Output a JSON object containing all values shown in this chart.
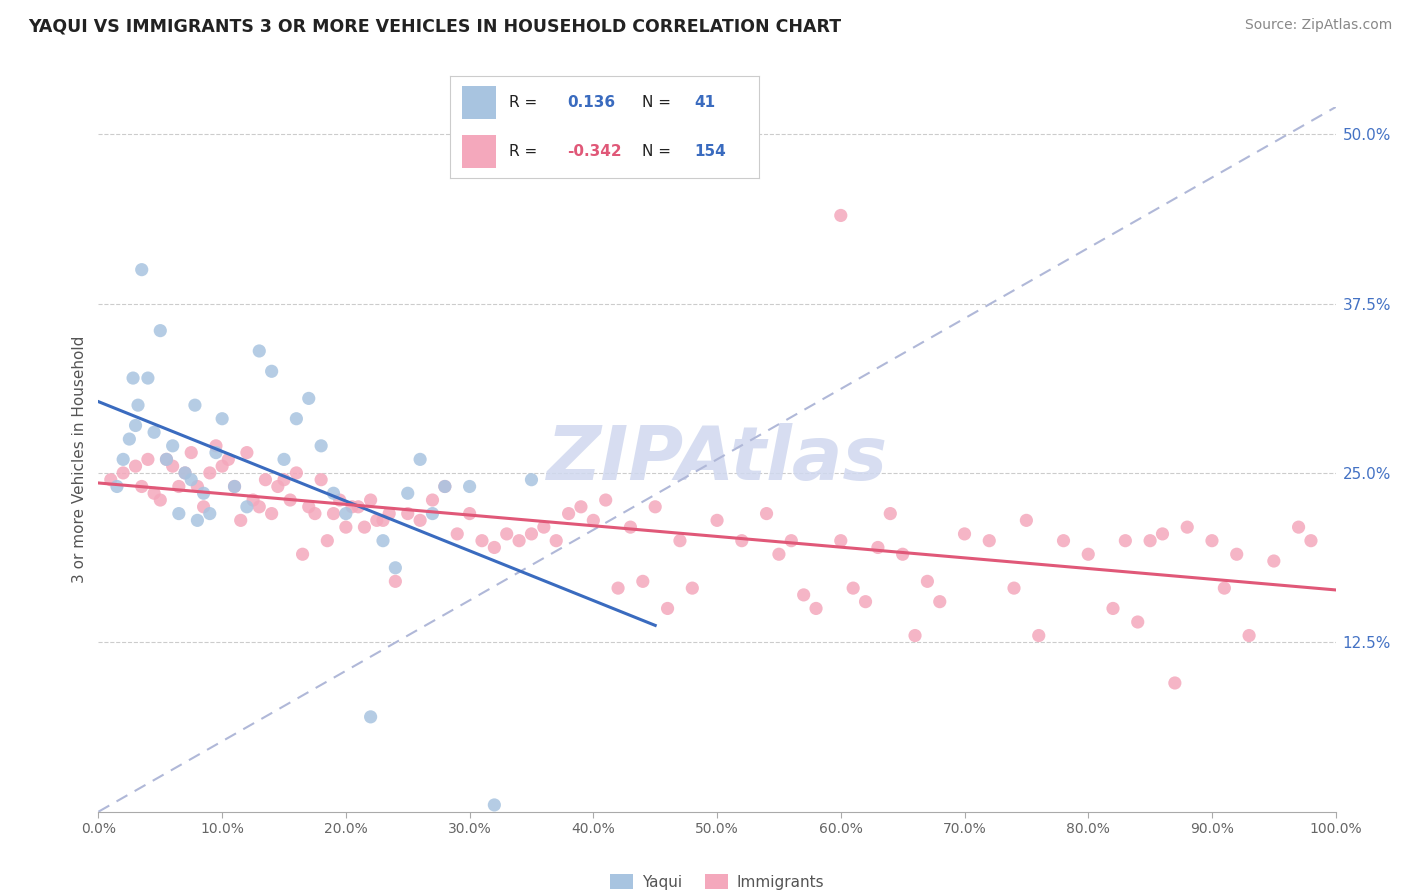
{
  "title": "YAQUI VS IMMIGRANTS 3 OR MORE VEHICLES IN HOUSEHOLD CORRELATION CHART",
  "source": "Source: ZipAtlas.com",
  "ylabel": "3 or more Vehicles in Household",
  "xlim": [
    0,
    100
  ],
  "ylim": [
    0,
    52
  ],
  "yticks": [
    12.5,
    25.0,
    37.5,
    50.0
  ],
  "xticks": [
    0,
    10,
    20,
    30,
    40,
    50,
    60,
    70,
    80,
    90,
    100
  ],
  "yaqui_R": 0.136,
  "yaqui_N": 41,
  "immigrants_R": -0.342,
  "immigrants_N": 154,
  "yaqui_color": "#a8c4e0",
  "immigrants_color": "#f4a8bc",
  "yaqui_line_color": "#3a6bbf",
  "immigrants_line_color": "#e05878",
  "dashed_line_color": "#b0b8d8",
  "background_color": "#ffffff",
  "grid_color": "#cccccc",
  "watermark_color": "#d0d8ef",
  "yaqui_x": [
    1.5,
    2.0,
    2.5,
    2.8,
    3.0,
    3.2,
    3.5,
    4.0,
    4.5,
    5.0,
    5.5,
    6.0,
    6.5,
    7.0,
    7.5,
    7.8,
    8.0,
    8.5,
    9.0,
    9.5,
    10.0,
    11.0,
    12.0,
    13.0,
    14.0,
    15.0,
    16.0,
    17.0,
    18.0,
    19.0,
    20.0,
    22.0,
    23.0,
    24.0,
    25.0,
    26.0,
    27.0,
    28.0,
    30.0,
    32.0,
    35.0
  ],
  "yaqui_y": [
    24.0,
    26.0,
    27.5,
    32.0,
    28.5,
    30.0,
    40.0,
    32.0,
    28.0,
    35.5,
    26.0,
    27.0,
    22.0,
    25.0,
    24.5,
    30.0,
    21.5,
    23.5,
    22.0,
    26.5,
    29.0,
    24.0,
    22.5,
    34.0,
    32.5,
    26.0,
    29.0,
    30.5,
    27.0,
    23.5,
    22.0,
    7.0,
    20.0,
    18.0,
    23.5,
    26.0,
    22.0,
    24.0,
    24.0,
    0.5,
    24.5
  ],
  "immigrants_x": [
    1.0,
    2.0,
    3.0,
    3.5,
    4.0,
    4.5,
    5.0,
    5.5,
    6.0,
    6.5,
    7.0,
    7.5,
    8.0,
    8.5,
    9.0,
    9.5,
    10.0,
    10.5,
    11.0,
    11.5,
    12.0,
    12.5,
    13.0,
    13.5,
    14.0,
    14.5,
    15.0,
    15.5,
    16.0,
    16.5,
    17.0,
    17.5,
    18.0,
    18.5,
    19.0,
    19.5,
    20.0,
    20.5,
    21.0,
    21.5,
    22.0,
    22.5,
    23.0,
    23.5,
    24.0,
    25.0,
    26.0,
    27.0,
    28.0,
    29.0,
    30.0,
    31.0,
    32.0,
    33.0,
    34.0,
    35.0,
    36.0,
    37.0,
    38.0,
    39.0,
    40.0,
    41.0,
    42.0,
    43.0,
    44.0,
    45.0,
    46.0,
    47.0,
    48.0,
    50.0,
    52.0,
    54.0,
    55.0,
    56.0,
    57.0,
    58.0,
    60.0,
    61.0,
    62.0,
    63.0,
    64.0,
    65.0,
    66.0,
    67.0,
    68.0,
    70.0,
    72.0,
    74.0,
    75.0,
    76.0,
    78.0,
    80.0,
    82.0,
    83.0,
    84.0,
    85.0,
    86.0,
    87.0,
    88.0,
    90.0,
    91.0,
    92.0,
    93.0,
    95.0,
    97.0,
    98.0,
    60.0
  ],
  "immigrants_y": [
    24.5,
    25.0,
    25.5,
    24.0,
    26.0,
    23.5,
    23.0,
    26.0,
    25.5,
    24.0,
    25.0,
    26.5,
    24.0,
    22.5,
    25.0,
    27.0,
    25.5,
    26.0,
    24.0,
    21.5,
    26.5,
    23.0,
    22.5,
    24.5,
    22.0,
    24.0,
    24.5,
    23.0,
    25.0,
    19.0,
    22.5,
    22.0,
    24.5,
    20.0,
    22.0,
    23.0,
    21.0,
    22.5,
    22.5,
    21.0,
    23.0,
    21.5,
    21.5,
    22.0,
    17.0,
    22.0,
    21.5,
    23.0,
    24.0,
    20.5,
    22.0,
    20.0,
    19.5,
    20.5,
    20.0,
    20.5,
    21.0,
    20.0,
    22.0,
    22.5,
    21.5,
    23.0,
    16.5,
    21.0,
    17.0,
    22.5,
    15.0,
    20.0,
    16.5,
    21.5,
    20.0,
    22.0,
    19.0,
    20.0,
    16.0,
    15.0,
    20.0,
    16.5,
    15.5,
    19.5,
    22.0,
    19.0,
    13.0,
    17.0,
    15.5,
    20.5,
    20.0,
    16.5,
    21.5,
    13.0,
    20.0,
    19.0,
    15.0,
    20.0,
    14.0,
    20.0,
    20.5,
    9.5,
    21.0,
    20.0,
    16.5,
    19.0,
    13.0,
    18.5,
    21.0,
    20.0,
    44.0
  ]
}
